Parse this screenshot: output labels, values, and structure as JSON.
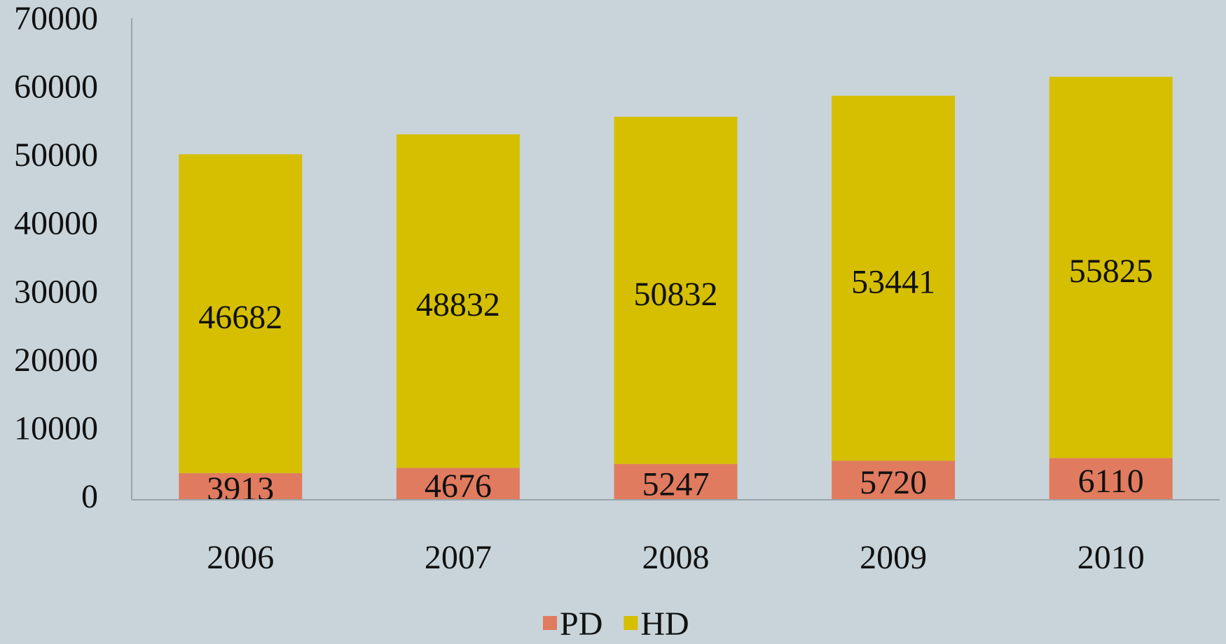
{
  "chart_data": {
    "type": "bar",
    "stacked": true,
    "categories": [
      "2006",
      "2007",
      "2008",
      "2009",
      "2010"
    ],
    "series": [
      {
        "name": "PD",
        "color": "#e07b5f",
        "values": [
          3913,
          4676,
          5247,
          5720,
          6110
        ]
      },
      {
        "name": "HD",
        "color": "#d6bf00",
        "values": [
          46682,
          48832,
          50832,
          53441,
          55825
        ]
      }
    ],
    "ylim": [
      0,
      70000
    ],
    "yticks": [
      0,
      10000,
      20000,
      30000,
      40000,
      50000,
      60000,
      70000
    ],
    "grid": false,
    "legend": "bottom"
  }
}
